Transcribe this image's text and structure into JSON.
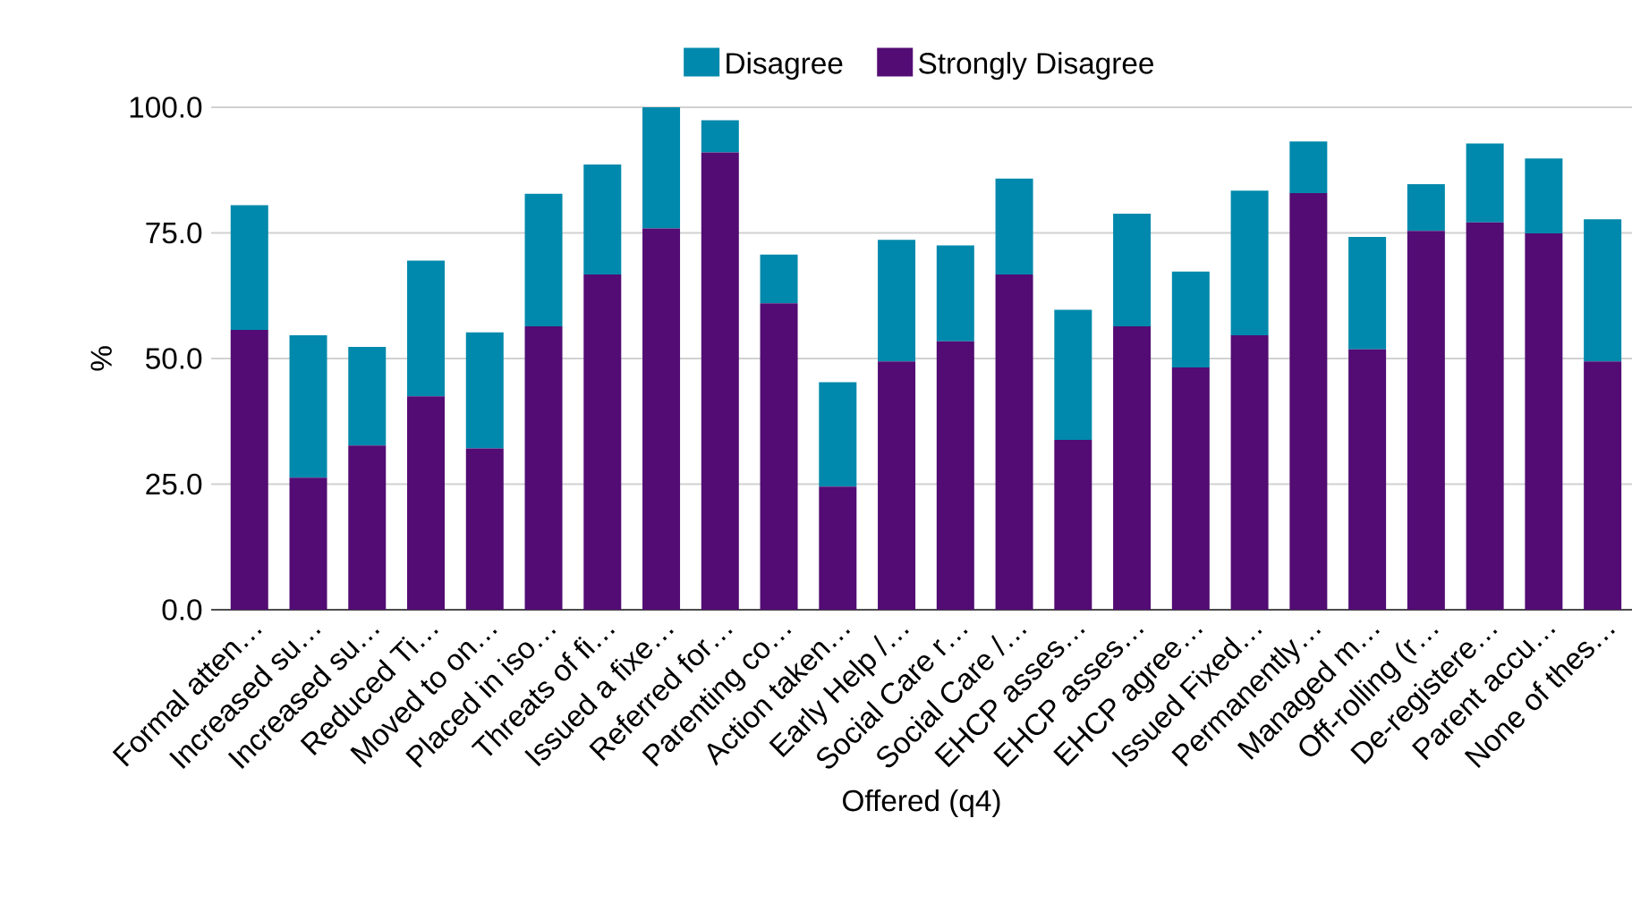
{
  "chart_data": {
    "type": "bar",
    "stacked": true,
    "xlabel": "Offered (q4)",
    "ylabel": "%",
    "categories": [
      "Formal atten…",
      "Increased su…",
      "Increased su…",
      "Reduced Ti…",
      "Moved to on…",
      "Placed in iso…",
      "Threats of fi…",
      "Issued a fixe…",
      "Referred for…",
      "Parenting co…",
      "Action taken…",
      "Early Help /…",
      "Social Care r…",
      "Social Care /…",
      "EHCP asses…",
      "EHCP asses…",
      "EHCP agree…",
      "Issued Fixed…",
      "Permanently…",
      "Managed m…",
      "Off-rolling (r…",
      "De-registere…",
      "Parent accu…",
      "None of thes…"
    ],
    "series": [
      {
        "name": "Strongly Disagree",
        "color": "#520c73",
        "values": [
          55.7,
          26.3,
          32.7,
          42.5,
          32.1,
          56.4,
          66.7,
          75.9,
          91.0,
          61.0,
          24.5,
          49.4,
          53.4,
          66.7,
          33.8,
          56.4,
          48.2,
          54.6,
          82.9,
          51.8,
          75.4,
          77.1,
          74.9,
          49.4
        ]
      },
      {
        "name": "Disagree",
        "color": "#0089ac",
        "values": [
          24.8,
          28.3,
          19.6,
          27.0,
          23.1,
          26.4,
          21.9,
          24.1,
          6.4,
          9.7,
          20.8,
          24.2,
          19.1,
          19.1,
          25.9,
          22.4,
          19.1,
          28.8,
          10.3,
          22.4,
          9.3,
          15.7,
          14.9,
          28.3
        ]
      }
    ],
    "ylim": [
      0,
      100
    ],
    "yticks": [
      {
        "value": 0,
        "label": "0.0"
      },
      {
        "value": 25,
        "label": "25.0"
      },
      {
        "value": 50,
        "label": "50.0"
      },
      {
        "value": 75,
        "label": "75.0"
      },
      {
        "value": 100,
        "label": "100.0"
      }
    ],
    "grid": "y",
    "legend": "top"
  }
}
